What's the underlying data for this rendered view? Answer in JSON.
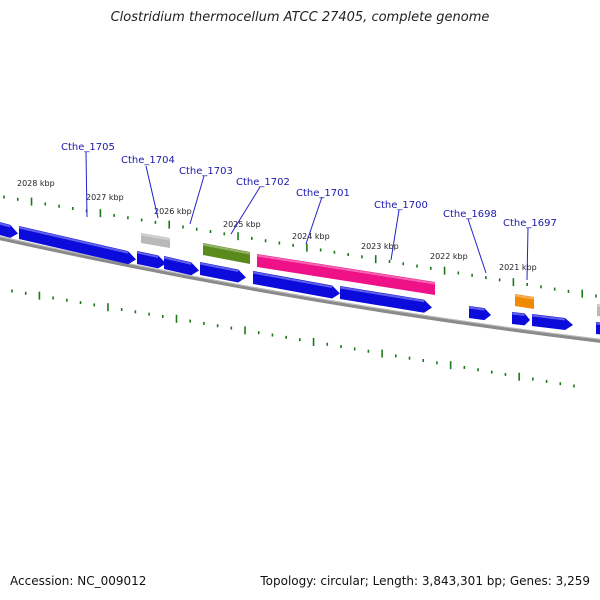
{
  "title": "Clostridium thermocellum ATCC 27405, complete genome",
  "accession": "Accession: NC_009012",
  "summary": "Topology: circular; Length: 3,843,301 bp; Genes: 3,259",
  "colors": {
    "cds": "#0b0bdc",
    "pseudo": "#b9b9b9",
    "olive": "#5a8a1c",
    "magenta": "#ee1188",
    "orange": "#f08a00",
    "tick": "#1a7a1a",
    "backbone": "#8a8a8a",
    "label": "#1a1aaa"
  },
  "kbp_labels": [
    "2028 kbp",
    "2027 kbp",
    "2026 kbp",
    "2025 kbp",
    "2024 kbp",
    "2023 kbp",
    "2022 kbp",
    "2021 kbp"
  ],
  "gene_labels": [
    "Cthe_1705",
    "Cthe_1704",
    "Cthe_1703",
    "Cthe_1702",
    "Cthe_1701",
    "Cthe_1700",
    "Cthe_1698",
    "Cthe_1697"
  ]
}
